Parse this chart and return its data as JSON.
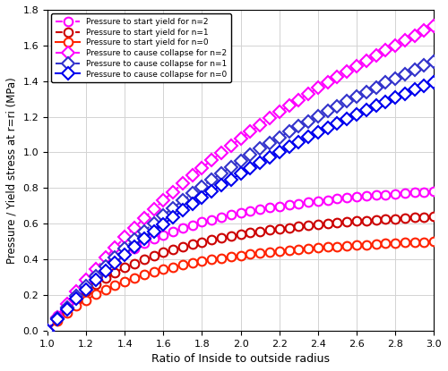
{
  "ylim": [
    0,
    1.8
  ],
  "xlim": [
    1.0,
    3.0
  ],
  "ylabel": "Pressure / Yield stress at r=ri (MPa)",
  "xlabel": "Ratio of Inside to outside radius",
  "legend_entries": [
    "Pressure to start yield for n=2",
    "Pressure to start yield for n=1",
    "Pressure to start yield for n=0",
    "Pressure to cause collapse for n=2",
    "Pressure to cause collapse for n=1",
    "Pressure to cause collapse for n=0"
  ],
  "color_yield_n2": "#FF00FF",
  "color_yield_n1": "#CC0000",
  "color_yield_n0": "#FF2200",
  "color_collapse_n2": "#FF00FF",
  "color_collapse_n1": "#3333CC",
  "color_collapse_n0": "#0000EE",
  "yticks": [
    0,
    0.2,
    0.4,
    0.6,
    0.8,
    1.0,
    1.2,
    1.4,
    1.6,
    1.8
  ],
  "xticks": [
    1.0,
    1.2,
    1.4,
    1.6,
    1.8,
    2.0,
    2.2,
    2.4,
    2.6,
    2.8,
    3.0
  ],
  "marker_every": 2,
  "marker_size": 7,
  "linewidth": 1.5
}
